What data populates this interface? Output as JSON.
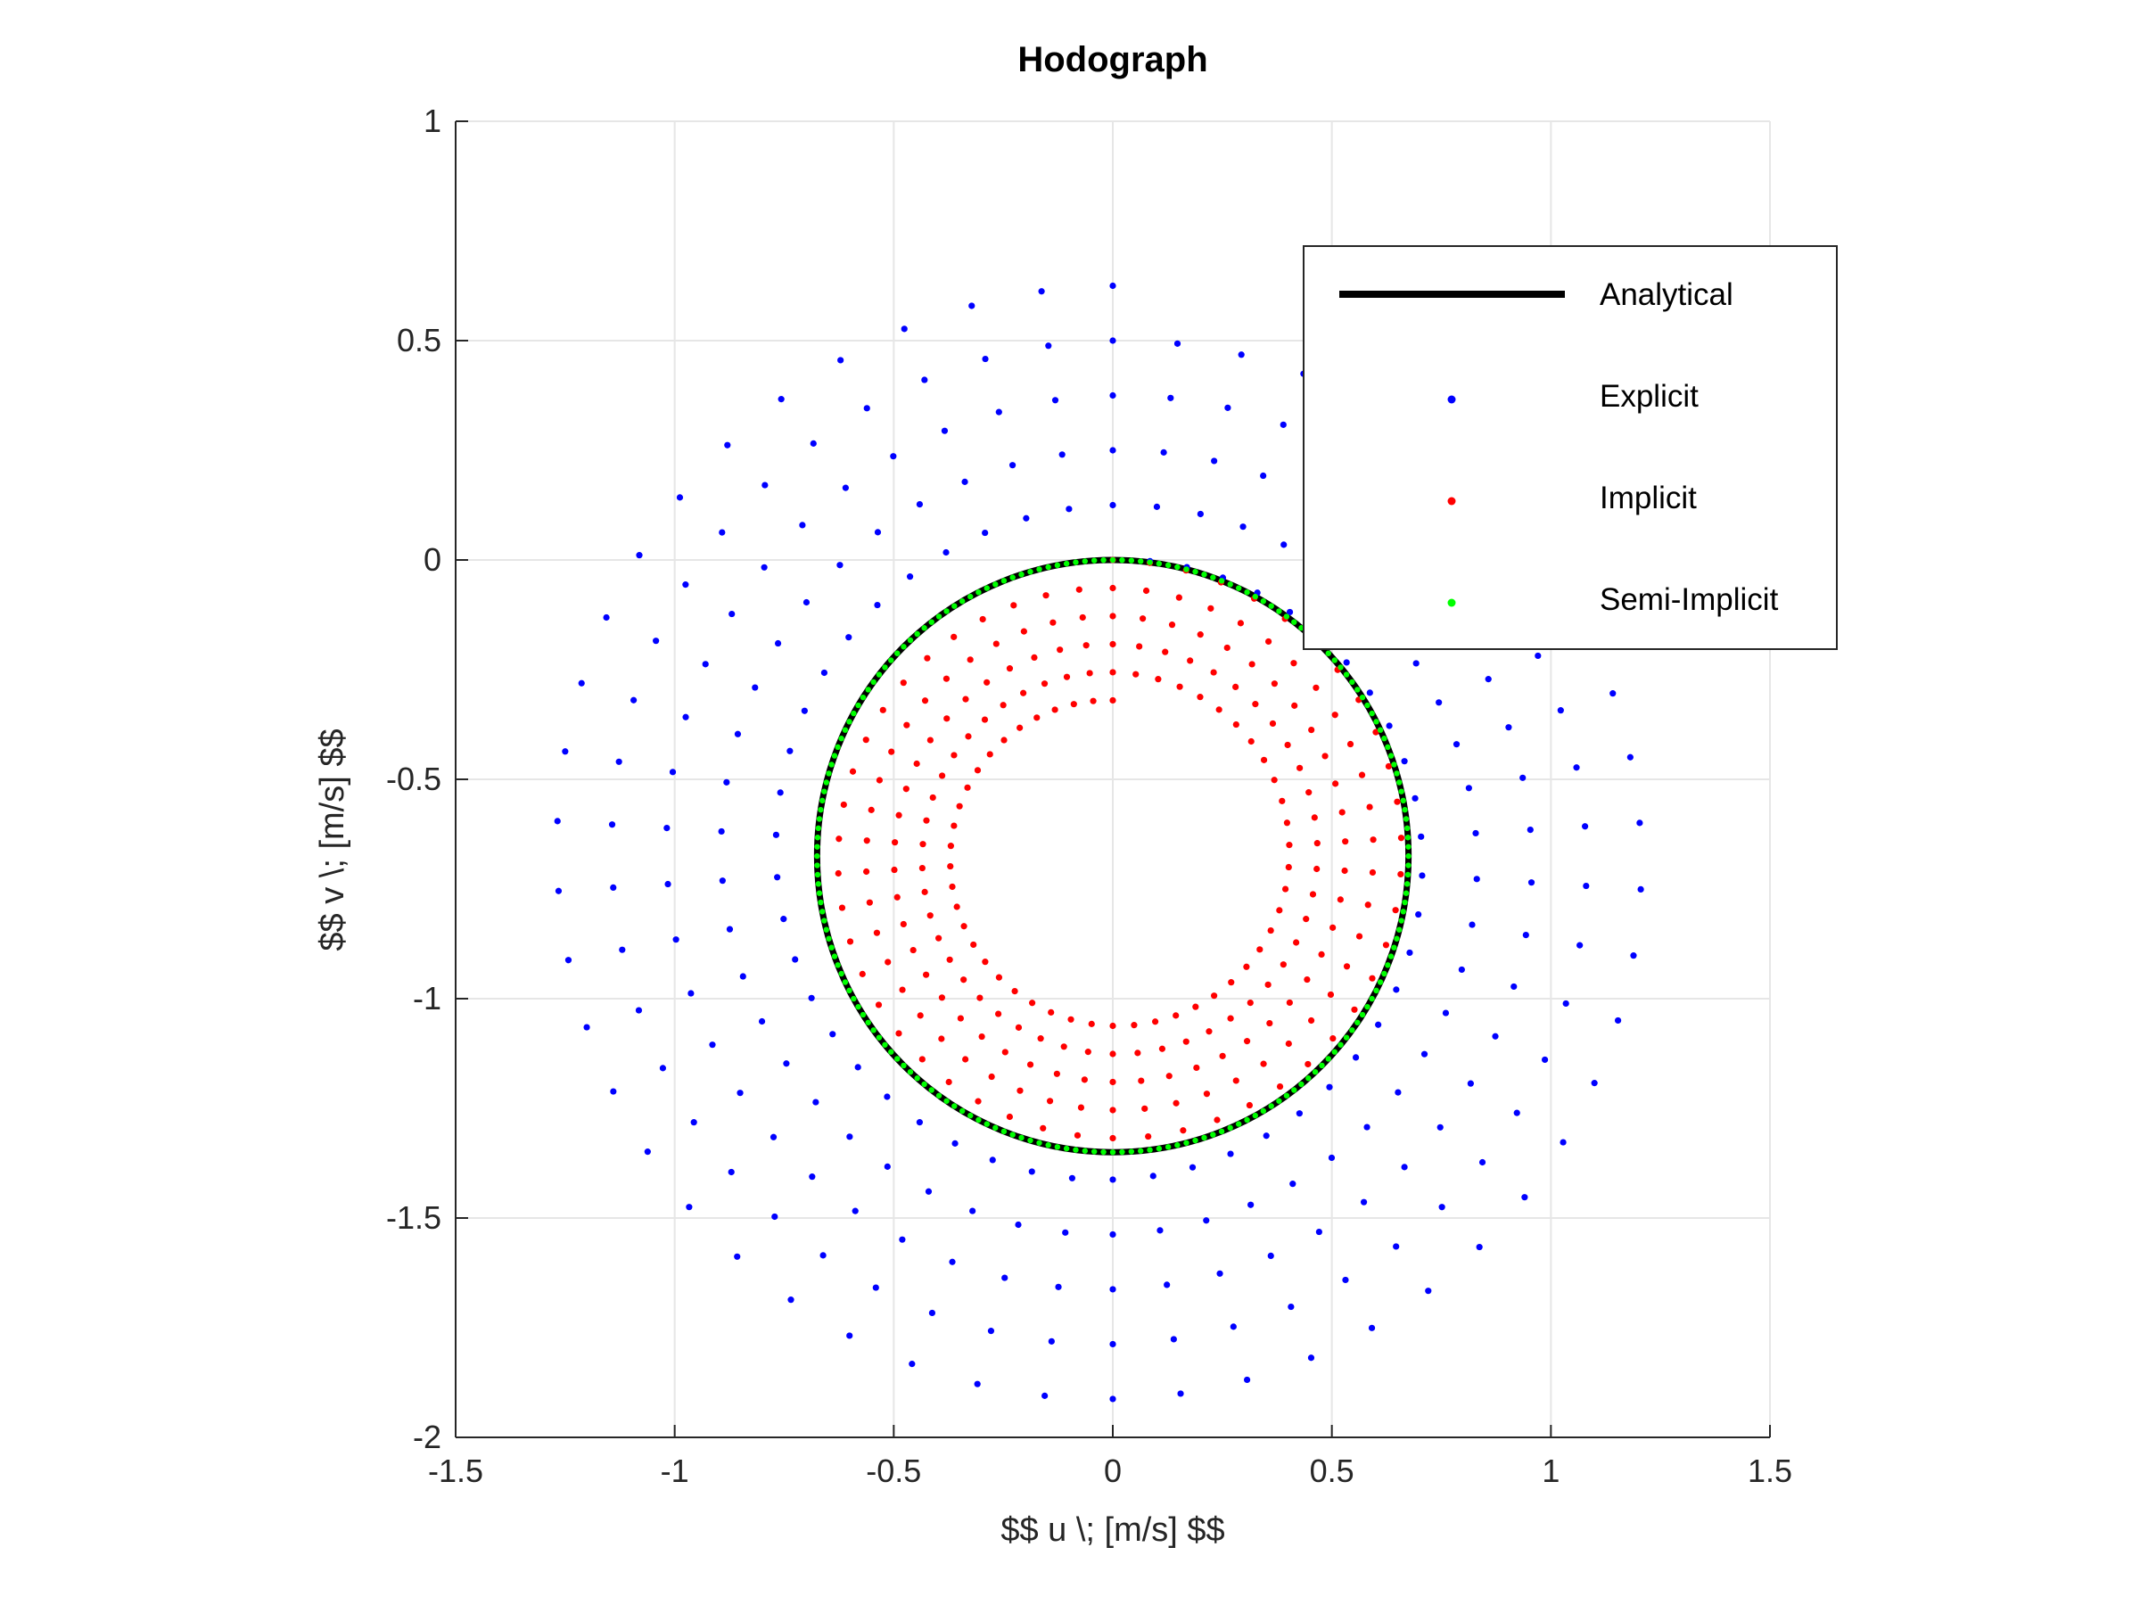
{
  "chart_data": {
    "type": "scatter",
    "title": "Hodograph",
    "xlabel": "$$ u \\; [m/s] $$",
    "ylabel": "$$ v \\; [m/s] $$",
    "xlim": [
      -1.5,
      1.5
    ],
    "ylim": [
      -2,
      1
    ],
    "xticks": [
      "-1.5",
      "-1",
      "-0.5",
      "0",
      "0.5",
      "1",
      "1.5"
    ],
    "yticks": [
      "1",
      "0.5",
      "0",
      "-0.5",
      "-1",
      "-1.5",
      "-2"
    ],
    "grid": true,
    "legend_position": "top-right",
    "series": [
      {
        "name": "Analytical",
        "style": "line",
        "color": "#000000",
        "shape": "circle",
        "center": [
          0,
          -0.675
        ],
        "radius": 0.675
      },
      {
        "name": "Explicit",
        "style": "dots",
        "color": "#0000ff",
        "shape": "spiral",
        "center": [
          0,
          -0.675
        ],
        "radius_start": 0.675,
        "radius_end": 1.3,
        "turns": 5
      },
      {
        "name": "Implicit",
        "style": "dots",
        "color": "#ff0000",
        "shape": "spiral",
        "center": [
          0,
          -0.675
        ],
        "radius_start": 0.675,
        "radius_end": 0.355,
        "turns": 5
      },
      {
        "name": "Semi-Implicit",
        "style": "dots",
        "color": "#00ff00",
        "shape": "circle",
        "center": [
          0,
          -0.675
        ],
        "radius": 0.675
      }
    ]
  }
}
